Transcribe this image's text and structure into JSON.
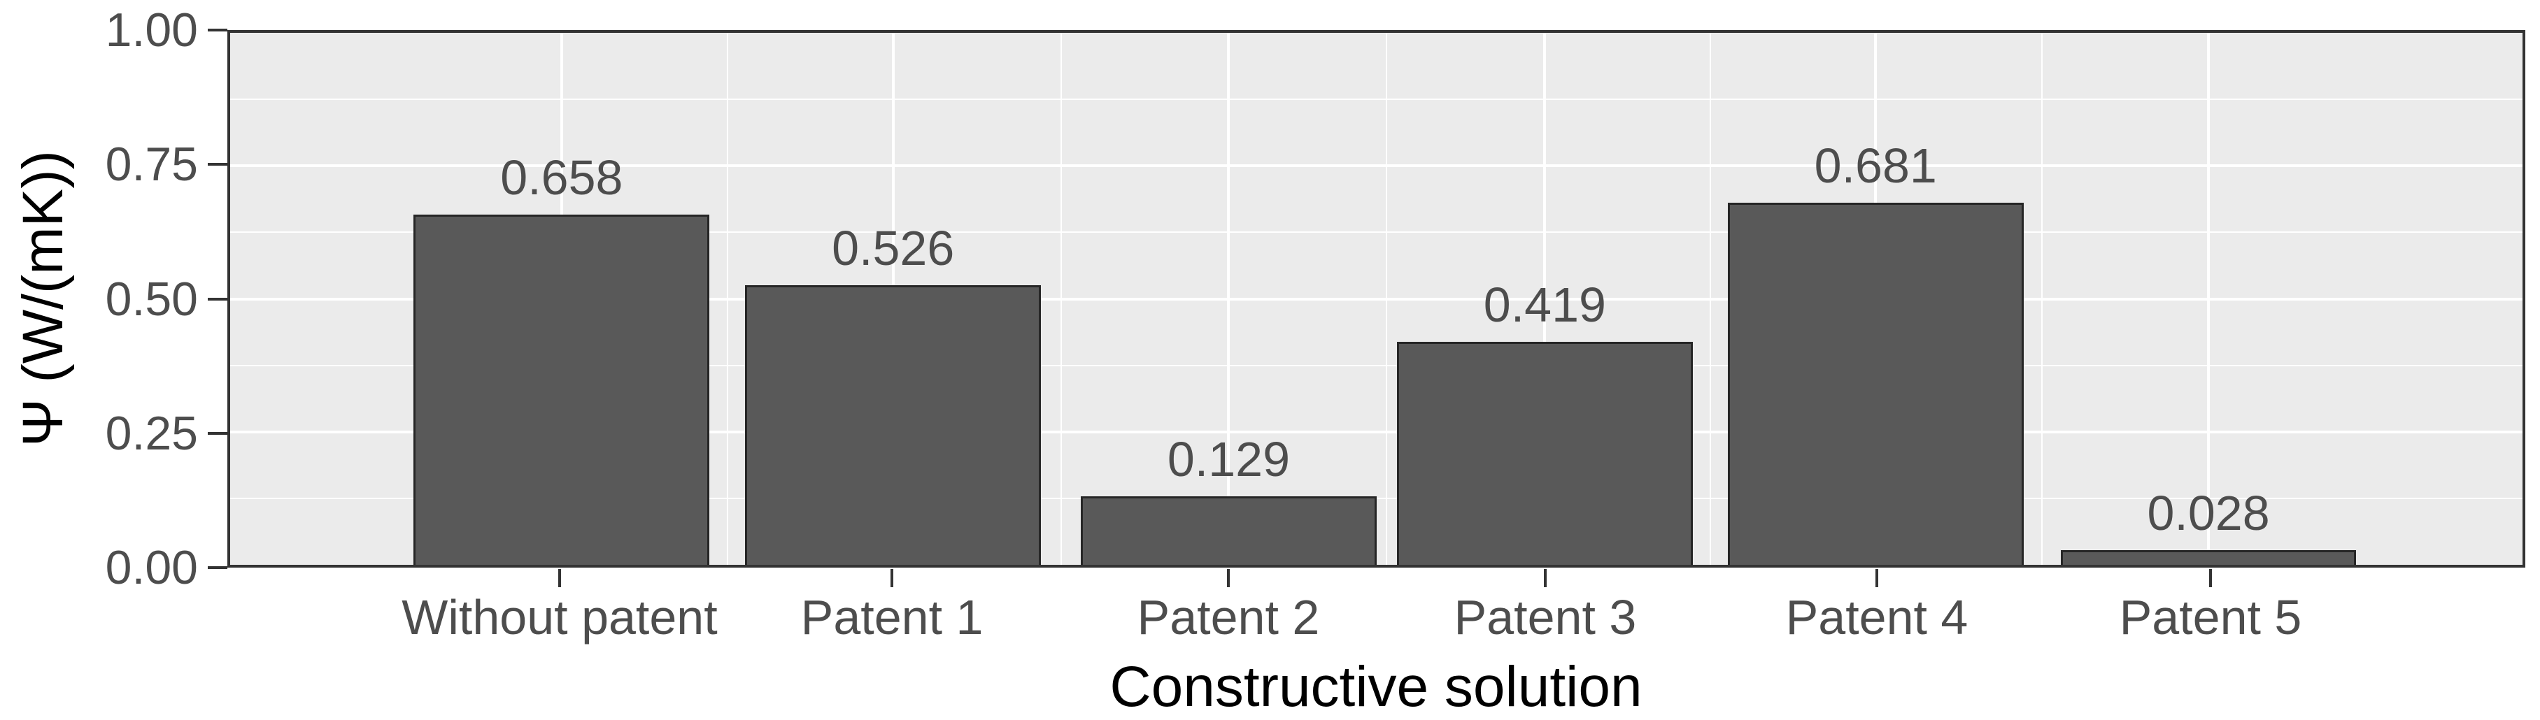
{
  "chart_data": {
    "type": "bar",
    "title": "",
    "categories": [
      "Without patent",
      "Patent 1",
      "Patent 2",
      "Patent 3",
      "Patent 4",
      "Patent 5"
    ],
    "values": [
      0.658,
      0.526,
      0.129,
      0.419,
      0.681,
      0.028
    ],
    "bar_labels": [
      "0.658",
      "0.526",
      "0.129",
      "0.419",
      "0.681",
      "0.028"
    ],
    "xlabel": "Constructive solution",
    "ylabel": "Ψ (W/(mK))",
    "ylim": [
      0,
      1
    ],
    "yticks": [
      {
        "value": 0.0,
        "label": "0.00"
      },
      {
        "value": 0.25,
        "label": "0.25"
      },
      {
        "value": 0.5,
        "label": "0.50"
      },
      {
        "value": 0.75,
        "label": "0.75"
      },
      {
        "value": 1.0,
        "label": "1.00"
      }
    ],
    "grid": "major and minor horizontal white lines, vertical white lines at bar centers",
    "legend_position": "none",
    "colors": {
      "bar_fill": "#595959",
      "bar_stroke": "#262626",
      "panel_background": "#ebebeb",
      "gridline": "#ffffff",
      "panel_border": "#333333",
      "axis_text": "#4d4d4d",
      "axis_title": "#000000",
      "figure_background": "#ffffff"
    }
  }
}
